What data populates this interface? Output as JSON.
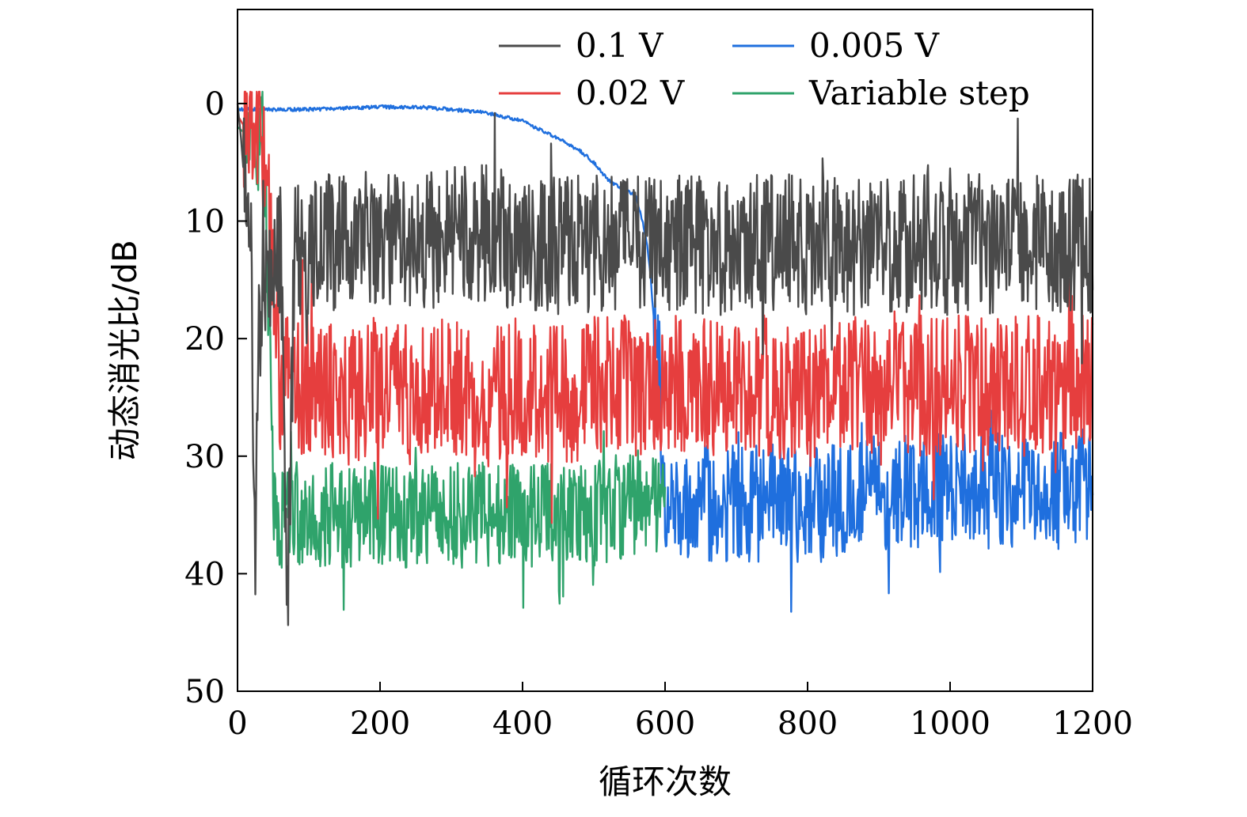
{
  "chart_data": {
    "type": "line",
    "title": "",
    "xlabel": "循环次数",
    "ylabel": "动态消光比/dB",
    "xlim": [
      0,
      1200
    ],
    "ylim": [
      50,
      -8
    ],
    "y_axis_inverted": true,
    "grid": false,
    "legend_position": "top-right",
    "x_ticks": [
      "0",
      "200",
      "400",
      "600",
      "800",
      "1000",
      "1200"
    ],
    "y_ticks": [
      "0",
      "10",
      "20",
      "30",
      "40",
      "50"
    ],
    "x_tick_values": [
      0,
      200,
      400,
      600,
      800,
      1000,
      1200
    ],
    "y_tick_values": [
      0,
      10,
      20,
      30,
      40,
      50
    ],
    "series": [
      {
        "name": "0.1 V",
        "color": "#4a4a4a",
        "x": [
          0,
          5,
          10,
          15,
          20,
          25,
          30,
          40,
          50,
          60,
          70,
          80,
          90,
          100,
          150,
          200,
          250,
          300,
          350,
          400,
          450,
          500,
          550,
          600,
          650,
          700,
          750,
          800,
          850,
          900,
          950,
          1000,
          1050,
          1100,
          1150,
          1200
        ],
        "values": [
          0,
          3,
          7,
          12,
          15,
          40,
          20,
          14,
          13,
          12,
          42,
          13,
          12,
          12,
          12,
          11,
          12,
          11,
          11,
          12,
          12,
          12,
          12,
          12,
          12,
          12,
          12,
          12,
          12,
          12,
          12,
          12,
          12,
          12,
          12,
          12
        ],
        "noise_amplitude": 6
      },
      {
        "name": "0.02 V",
        "color": "#e63e3e",
        "x": [
          0,
          10,
          20,
          30,
          40,
          50,
          60,
          70,
          80,
          100,
          150,
          200,
          250,
          300,
          350,
          400,
          450,
          500,
          550,
          600,
          650,
          700,
          750,
          800,
          850,
          900,
          950,
          1000,
          1050,
          1100,
          1150,
          1200
        ],
        "values": [
          1,
          2,
          2,
          3,
          5,
          15,
          24,
          24,
          24,
          24,
          25,
          24,
          24,
          24,
          25,
          24,
          25,
          24,
          24,
          24,
          24,
          24,
          24,
          25,
          24,
          24,
          24,
          24,
          24,
          24,
          24,
          24
        ],
        "noise_amplitude": 6
      },
      {
        "name": "0.005 V",
        "color": "#1f6fde",
        "x": [
          0,
          20,
          50,
          100,
          150,
          200,
          250,
          300,
          350,
          400,
          450,
          480,
          500,
          520,
          540,
          550,
          560,
          570,
          575,
          580,
          590,
          600,
          650,
          700,
          750,
          800,
          850,
          900,
          950,
          1000,
          1050,
          1100,
          1150,
          1200
        ],
        "values": [
          0.5,
          0.5,
          0.5,
          0.5,
          0.4,
          0.3,
          0.3,
          0.5,
          0.8,
          1.5,
          3,
          4,
          5,
          6.5,
          7.3,
          7.5,
          8,
          10.5,
          12,
          15,
          23,
          33,
          34,
          34,
          34,
          34,
          34,
          33,
          33,
          33,
          33,
          33,
          33,
          32
        ],
        "noise_amplitude": 5,
        "noise_start_x": 585
      },
      {
        "name": "Variable step",
        "color": "#2fa36b",
        "x": [
          0,
          10,
          20,
          30,
          35,
          40,
          45,
          50,
          55,
          60,
          100,
          150,
          200,
          250,
          300,
          350,
          400,
          450,
          500,
          550,
          600
        ],
        "values": [
          2,
          2.5,
          3,
          3,
          1,
          10,
          20,
          34,
          35,
          35,
          35,
          35,
          35,
          35,
          35,
          35,
          35,
          35,
          35,
          34,
          34
        ],
        "noise_amplitude": 4.5
      }
    ],
    "legend_layout": [
      [
        "0.1 V",
        "0.005 V"
      ],
      [
        "0.02 V",
        "Variable step"
      ]
    ]
  }
}
